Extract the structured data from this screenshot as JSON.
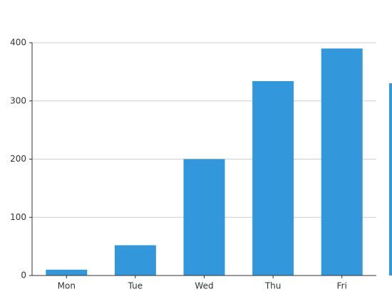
{
  "chart_data": {
    "type": "bar",
    "categories": [
      "Mon",
      "Tue",
      "Wed",
      "Thu",
      "Fri"
    ],
    "values": [
      10,
      52,
      200,
      334,
      390
    ],
    "color": "#3398db",
    "ylim": [
      0,
      400
    ],
    "yticks": [
      0,
      100,
      200,
      300,
      400
    ],
    "grid": true
  }
}
